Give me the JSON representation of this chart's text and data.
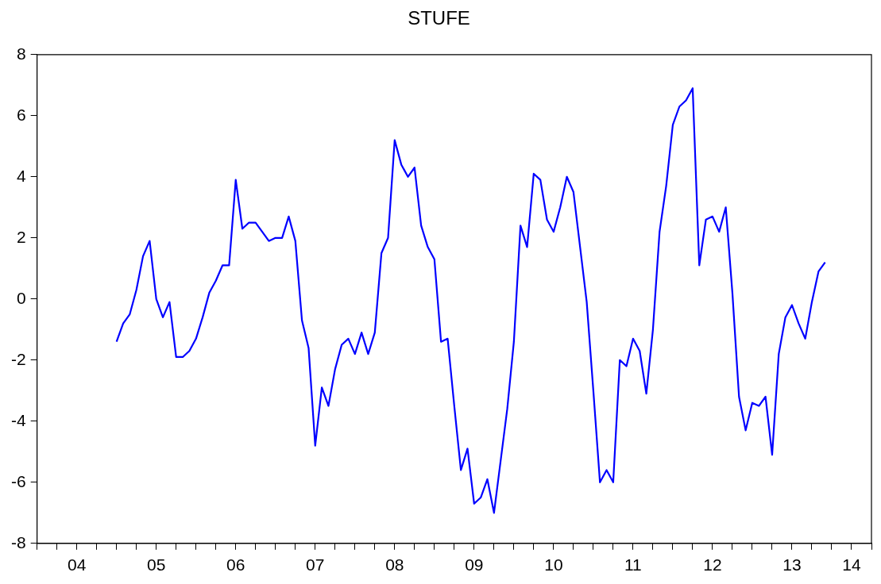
{
  "chart_data": {
    "type": "line",
    "title": "STUFE",
    "x": [
      "2005-01",
      "2005-02",
      "2005-03",
      "2005-04",
      "2005-05",
      "2005-06",
      "2005-07",
      "2005-08",
      "2005-09",
      "2005-10",
      "2005-11",
      "2005-12",
      "2006-01",
      "2006-02",
      "2006-03",
      "2006-04",
      "2006-05",
      "2006-06",
      "2006-07",
      "2006-08",
      "2006-09",
      "2006-10",
      "2006-11",
      "2006-12",
      "2007-01",
      "2007-02",
      "2007-03",
      "2007-04",
      "2007-05",
      "2007-06",
      "2007-07",
      "2007-08",
      "2007-09",
      "2007-10",
      "2007-11",
      "2007-12",
      "2008-01",
      "2008-02",
      "2008-03",
      "2008-04",
      "2008-05",
      "2008-06",
      "2008-07",
      "2008-08",
      "2008-09",
      "2008-10",
      "2008-11",
      "2008-12",
      "2009-01",
      "2009-02",
      "2009-03",
      "2009-04",
      "2009-05",
      "2009-06",
      "2009-07",
      "2009-08",
      "2009-09",
      "2009-10",
      "2009-11",
      "2009-12",
      "2010-01",
      "2010-02",
      "2010-03",
      "2010-04",
      "2010-05",
      "2010-06",
      "2010-07",
      "2010-08",
      "2010-09",
      "2010-10",
      "2010-11",
      "2010-12",
      "2011-01",
      "2011-02",
      "2011-03",
      "2011-04",
      "2011-05",
      "2011-06",
      "2011-07",
      "2011-08",
      "2011-09",
      "2011-10",
      "2011-11",
      "2011-12",
      "2012-01",
      "2012-02",
      "2012-03",
      "2012-04",
      "2012-05",
      "2012-06",
      "2012-07",
      "2012-08",
      "2012-09",
      "2012-10",
      "2012-11",
      "2012-12",
      "2013-01",
      "2013-02",
      "2013-03",
      "2013-04",
      "2013-05",
      "2013-06",
      "2013-07",
      "2013-08",
      "2013-09",
      "2013-10",
      "2013-11",
      "2013-12"
    ],
    "series": [
      {
        "color": "#0000ff",
        "values": [
          -1.4,
          -0.8,
          -0.5,
          0.3,
          1.4,
          1.9,
          0.0,
          -0.6,
          -0.1,
          -1.9,
          -1.9,
          -1.7,
          -1.3,
          -0.6,
          0.2,
          0.6,
          1.1,
          1.1,
          3.9,
          2.3,
          2.5,
          2.5,
          2.2,
          1.9,
          2.0,
          2.0,
          2.7,
          1.9,
          -0.7,
          -1.6,
          -4.8,
          -2.9,
          -3.5,
          -2.3,
          -1.5,
          -1.3,
          -1.8,
          -1.1,
          -1.8,
          -1.1,
          1.5,
          2.0,
          5.2,
          4.4,
          4.0,
          4.3,
          2.4,
          1.7,
          1.3,
          -1.4,
          -1.3,
          -3.5,
          -5.6,
          -4.9,
          -6.7,
          -6.5,
          -5.9,
          -7.0,
          -5.3,
          -3.6,
          -1.4,
          2.4,
          1.7,
          4.1,
          3.9,
          2.6,
          2.2,
          3.0,
          4.0,
          3.5,
          1.7,
          -0.1,
          -3.0,
          -6.0,
          -5.6,
          -6.0,
          -2.0,
          -2.2,
          -1.3,
          -1.7,
          -3.1,
          -1.0,
          2.2,
          3.7,
          5.7,
          6.3,
          6.5,
          6.9,
          1.1,
          2.6,
          2.7,
          2.2,
          3.0,
          0.2,
          -3.2,
          -4.3,
          -3.4,
          -3.5,
          -3.2,
          -5.1,
          -1.8,
          -0.6,
          -0.2,
          -0.8,
          -1.3,
          -0.1,
          0.9,
          1.2
        ]
      }
    ],
    "xlim": [
      "2004-01",
      "2014-07"
    ],
    "xticks": [
      {
        "value": "2004-01",
        "label": null
      },
      {
        "value": "2004-04",
        "label": null
      },
      {
        "value": "2004-07",
        "label": "04"
      },
      {
        "value": "2004-10",
        "label": null
      },
      {
        "value": "2005-01",
        "label": null
      },
      {
        "value": "2005-04",
        "label": null
      },
      {
        "value": "2005-07",
        "label": "05"
      },
      {
        "value": "2005-10",
        "label": null
      },
      {
        "value": "2006-01",
        "label": null
      },
      {
        "value": "2006-04",
        "label": null
      },
      {
        "value": "2006-07",
        "label": "06"
      },
      {
        "value": "2006-10",
        "label": null
      },
      {
        "value": "2007-01",
        "label": null
      },
      {
        "value": "2007-04",
        "label": null
      },
      {
        "value": "2007-07",
        "label": "07"
      },
      {
        "value": "2007-10",
        "label": null
      },
      {
        "value": "2008-01",
        "label": null
      },
      {
        "value": "2008-04",
        "label": null
      },
      {
        "value": "2008-07",
        "label": "08"
      },
      {
        "value": "2008-10",
        "label": null
      },
      {
        "value": "2009-01",
        "label": null
      },
      {
        "value": "2009-04",
        "label": null
      },
      {
        "value": "2009-07",
        "label": "09"
      },
      {
        "value": "2009-10",
        "label": null
      },
      {
        "value": "2010-01",
        "label": null
      },
      {
        "value": "2010-04",
        "label": null
      },
      {
        "value": "2010-07",
        "label": "10"
      },
      {
        "value": "2010-10",
        "label": null
      },
      {
        "value": "2011-01",
        "label": null
      },
      {
        "value": "2011-04",
        "label": null
      },
      {
        "value": "2011-07",
        "label": "11"
      },
      {
        "value": "2011-10",
        "label": null
      },
      {
        "value": "2012-01",
        "label": null
      },
      {
        "value": "2012-04",
        "label": null
      },
      {
        "value": "2012-07",
        "label": "12"
      },
      {
        "value": "2012-10",
        "label": null
      },
      {
        "value": "2013-01",
        "label": null
      },
      {
        "value": "2013-04",
        "label": null
      },
      {
        "value": "2013-07",
        "label": "13"
      },
      {
        "value": "2013-10",
        "label": null
      },
      {
        "value": "2014-01",
        "label": null
      },
      {
        "value": "2014-04",
        "label": "14"
      },
      {
        "value": "2014-07",
        "label": null
      }
    ],
    "ylim": [
      -8,
      8
    ],
    "yticks": [
      -8,
      -6,
      -4,
      -2,
      0,
      2,
      4,
      6,
      8
    ],
    "grid": false,
    "legend": false,
    "marker": "none",
    "line_style": "solid"
  }
}
